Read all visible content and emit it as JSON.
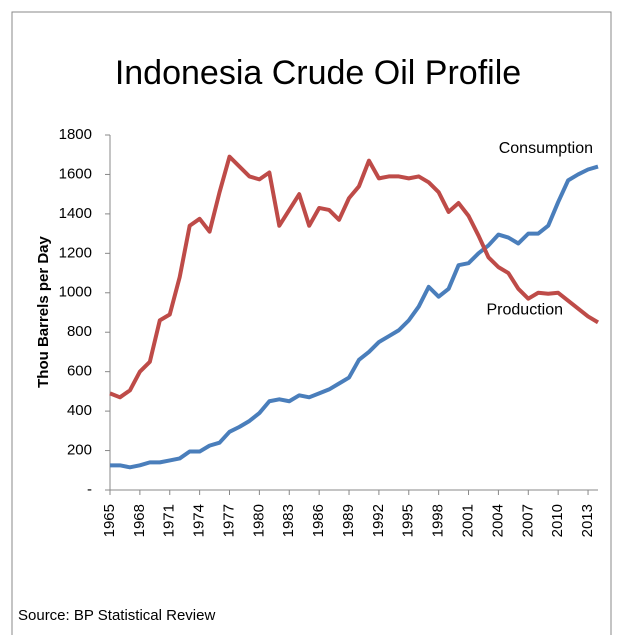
{
  "chart_data": {
    "type": "line",
    "title": "Indonesia Crude Oil Profile",
    "y_label": "Thou Barrels per Day",
    "source": "Source: BP Statistical Review",
    "x": [
      1965,
      1966,
      1967,
      1968,
      1969,
      1970,
      1971,
      1972,
      1973,
      1974,
      1975,
      1976,
      1977,
      1978,
      1979,
      1980,
      1981,
      1982,
      1983,
      1984,
      1985,
      1986,
      1987,
      1988,
      1989,
      1990,
      1991,
      1992,
      1993,
      1994,
      1995,
      1996,
      1997,
      1998,
      1999,
      2000,
      2001,
      2002,
      2003,
      2004,
      2005,
      2006,
      2007,
      2008,
      2009,
      2010,
      2011,
      2012,
      2013,
      2014
    ],
    "series": [
      {
        "name": "Consumption",
        "color": "#4a7ebb",
        "values": [
          125,
          125,
          115,
          125,
          140,
          140,
          150,
          160,
          195,
          195,
          225,
          240,
          295,
          320,
          350,
          390,
          450,
          460,
          450,
          480,
          470,
          490,
          510,
          540,
          570,
          660,
          700,
          750,
          780,
          810,
          860,
          930,
          1030,
          980,
          1020,
          1140,
          1150,
          1200,
          1240,
          1295,
          1280,
          1250,
          1300,
          1300,
          1340,
          1460,
          1570,
          1600,
          1625,
          1640
        ]
      },
      {
        "name": "Production",
        "color": "#be4b48",
        "values": [
          490,
          470,
          505,
          600,
          650,
          860,
          890,
          1080,
          1340,
          1375,
          1310,
          1510,
          1690,
          1640,
          1590,
          1575,
          1610,
          1340,
          1420,
          1500,
          1340,
          1430,
          1420,
          1370,
          1480,
          1540,
          1670,
          1580,
          1590,
          1590,
          1580,
          1590,
          1560,
          1510,
          1410,
          1455,
          1390,
          1290,
          1180,
          1130,
          1100,
          1020,
          970,
          1000,
          995,
          1000,
          960,
          920,
          880,
          850
        ]
      }
    ],
    "xlim": [
      1965,
      2014
    ],
    "xticks": [
      1965,
      1968,
      1971,
      1974,
      1977,
      1980,
      1983,
      1986,
      1989,
      1992,
      1995,
      1998,
      2001,
      2004,
      2007,
      2010,
      2013
    ],
    "ylim": [
      0,
      1800
    ],
    "yticks": [
      {
        "value": 0,
        "label": "-"
      },
      200,
      400,
      600,
      800,
      1000,
      1200,
      1400,
      1600,
      1800
    ],
    "grid": false
  }
}
